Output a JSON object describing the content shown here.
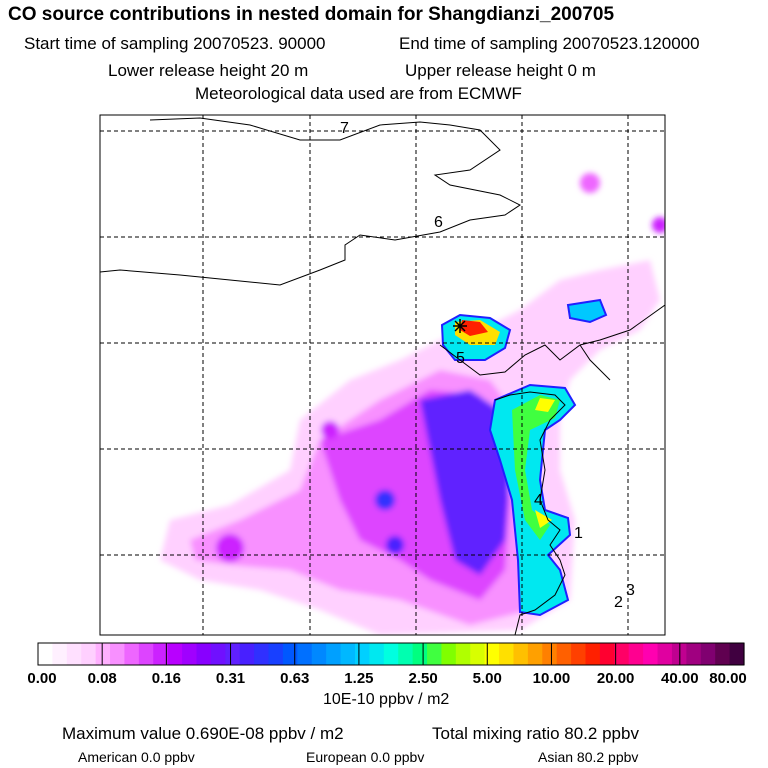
{
  "header": {
    "title": "CO  source contributions in nested domain for Shangdianzi_200705",
    "start_time": "Start time of sampling 20070523. 90000",
    "end_time": "End time of sampling 20070523.120000",
    "lower_height": "Lower release height   20 m",
    "upper_height": "Upper release height    0 m",
    "met_data": "Meteorological data used are from ECMWF"
  },
  "chart_data": {
    "type": "heatmap",
    "title": "CO  source contributions in nested domain for Shangdianzi_200705",
    "units": "10E-10 ppbv / m2",
    "colorbar_ticks": [
      "0.00",
      "0.08",
      "0.16",
      "0.31",
      "0.63",
      "1.25",
      "2.50",
      "5.00",
      "10.00",
      "20.00",
      "40.00",
      "80.00"
    ],
    "colorbar_colors": [
      "#ffffff",
      "#fff0ff",
      "#ffe0ff",
      "#ffd0ff",
      "#ffb0ff",
      "#f890ff",
      "#ee66ff",
      "#dd44ff",
      "#cc22ff",
      "#b800ff",
      "#a000ff",
      "#8800ff",
      "#7010ff",
      "#6020ff",
      "#4820ff",
      "#3030ff",
      "#1840ff",
      "#0058ff",
      "#0070ff",
      "#0088ff",
      "#00a0ff",
      "#00b8ff",
      "#00d0ff",
      "#00e8f0",
      "#00ffe0",
      "#00ffb0",
      "#00ff80",
      "#40ff40",
      "#80ff00",
      "#b0ff00",
      "#d8ff00",
      "#ffff00",
      "#ffe000",
      "#ffc000",
      "#ffa000",
      "#ff8000",
      "#ff6000",
      "#ff4000",
      "#ff2000",
      "#ff0030",
      "#ff0066",
      "#ff0090",
      "#ff00b0",
      "#e000a0",
      "#c00090",
      "#a00080",
      "#800070",
      "#600050",
      "#400040"
    ],
    "grid_labels": [
      "7",
      "6",
      "5",
      "4",
      "1",
      "2",
      "3"
    ],
    "receptor_marker": "*"
  },
  "footer": {
    "max_value": "Maximum value  0.690E-08 ppbv / m2",
    "total_mixing": "Total mixing ratio     80.2 ppbv",
    "american": "American       0.0 ppbv",
    "european": "European       0.0 ppbv",
    "asian": "Asian     80.2 ppbv"
  }
}
